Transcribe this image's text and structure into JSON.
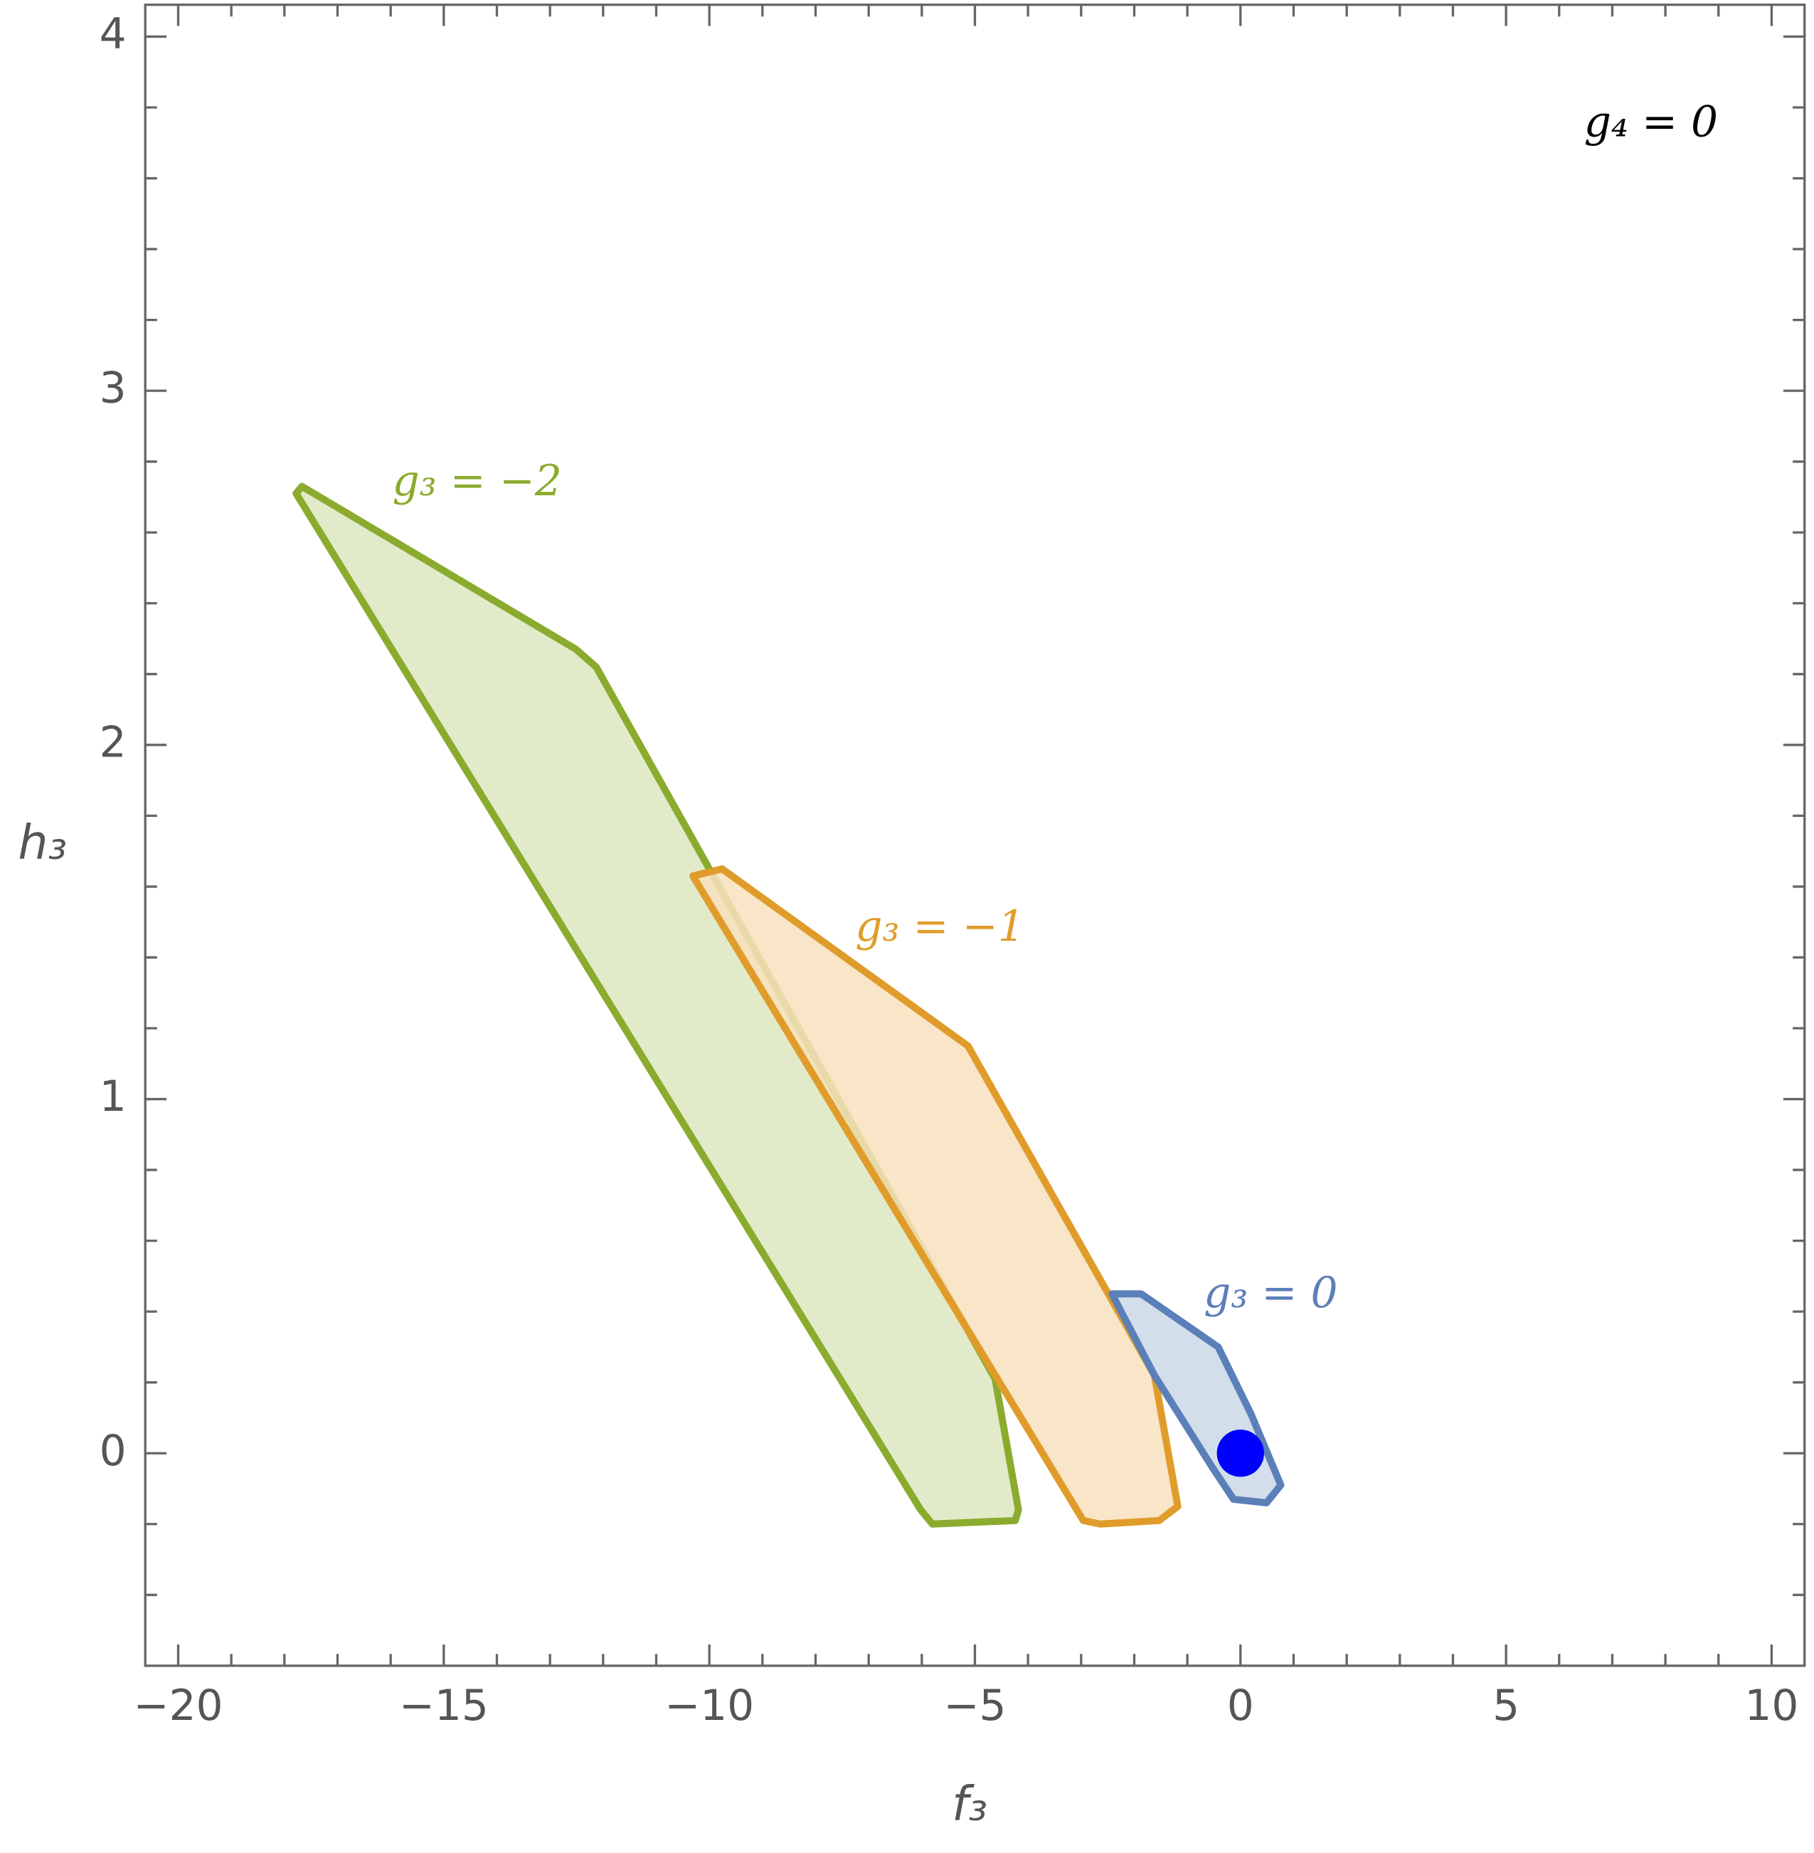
{
  "chart_data": {
    "type": "region",
    "xlabel": "f₃",
    "ylabel": "h₃",
    "annotation": "g₄ = 0",
    "xlim": [
      -20.62,
      10.62
    ],
    "ylim": [
      -0.6,
      4.09
    ],
    "xticks": [
      {
        "value": -20,
        "label": "−20"
      },
      {
        "value": -15,
        "label": "−15"
      },
      {
        "value": -10,
        "label": "−10"
      },
      {
        "value": -5,
        "label": "−5"
      },
      0,
      5,
      10
    ],
    "yticks": [
      0,
      1,
      2,
      3,
      4
    ],
    "xminor_ticks": [
      -19,
      -18,
      -17,
      -16,
      -14,
      -13,
      -12,
      -11,
      -9,
      -8,
      -7,
      -6,
      -4,
      -3,
      -2,
      -1,
      1,
      2,
      3,
      4,
      6,
      7,
      8,
      9
    ],
    "yminor_ticks": [
      -0.4,
      -0.2,
      0.2,
      0.4,
      0.6,
      0.8,
      1.2,
      1.4,
      1.6,
      1.8,
      2.2,
      2.4,
      2.6,
      2.8,
      3.2,
      3.4,
      3.6,
      3.8
    ],
    "series": [
      {
        "name": "g₃ = −2",
        "color": "#8aab2e",
        "fill": "#dde8c0",
        "x": [
          -17.67,
          -12.51,
          -12.13,
          -4.62,
          -4.18,
          -4.24,
          -5.8,
          -6.02,
          -17.78
        ],
        "y": [
          2.73,
          2.27,
          2.22,
          0.21,
          -0.16,
          -0.19,
          -0.2,
          -0.16,
          2.71
        ]
      },
      {
        "name": "g₃ = −1",
        "color": "#e09c2b",
        "fill": "#f8e0bd",
        "x": [
          -10.31,
          -9.76,
          -5.13,
          -1.62,
          -1.18,
          -1.53,
          -2.64,
          -2.96
        ],
        "y": [
          1.63,
          1.65,
          1.15,
          0.22,
          -0.15,
          -0.19,
          -0.2,
          -0.19
        ]
      },
      {
        "name": "g₃ = 0",
        "color": "#5b7fb8",
        "fill": "#cbd8e8",
        "x": [
          -2.42,
          -1.87,
          -0.42,
          0.2,
          0.76,
          0.49,
          -0.13,
          -0.53,
          -1.62
        ],
        "y": [
          0.45,
          0.45,
          0.3,
          0.11,
          -0.09,
          -0.14,
          -0.13,
          -0.04,
          0.22
        ]
      }
    ],
    "points": {
      "color": "#0000ff",
      "x": [
        0
      ],
      "y": [
        0
      ]
    }
  }
}
